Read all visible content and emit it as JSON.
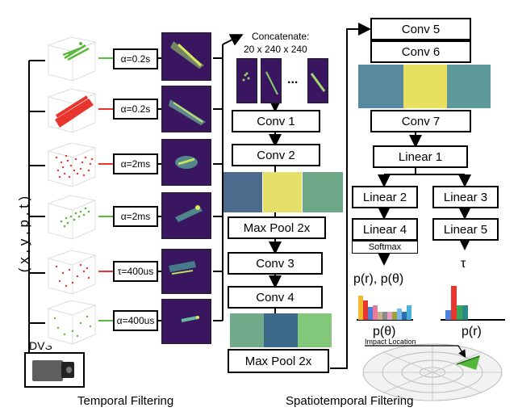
{
  "temporal": {
    "caption": "Temporal Filtering",
    "input_label": "( x , y , p , t )",
    "sensor_label": "DVS",
    "filters": [
      "α=0.2s",
      "α=0.2s",
      "α=2ms",
      "α=2ms",
      "τ=400us",
      "α=400us"
    ]
  },
  "spatial": {
    "caption": "Spatiotemporal Filtering",
    "concat_title": "Concatenate:",
    "concat_dims": "20 x 240 x 240",
    "ellipsis": "...",
    "conv1": "Conv 1",
    "conv2": "Conv 2",
    "pool1": "Max Pool 2x",
    "conv3": "Conv 3",
    "conv4": "Conv 4",
    "pool2": "Max Pool 2x",
    "conv5": "Conv 5",
    "conv6": "Conv 6",
    "conv7": "Conv 7",
    "linear1": "Linear 1",
    "linear2": "Linear 2",
    "linear3": "Linear 3",
    "linear4": "Linear 4",
    "linear5": "Linear 5",
    "softmax": "Softmax"
  },
  "outputs": {
    "prob_label": "p(r), p(θ)",
    "tau": "τ",
    "ptheta": "p(θ)",
    "pr": "p(r)",
    "impact": "Impact Location"
  },
  "colors": {
    "green_trace": "#5cb83c",
    "red_trace": "#e8352e",
    "heatmap_bg": "#3a1560"
  }
}
